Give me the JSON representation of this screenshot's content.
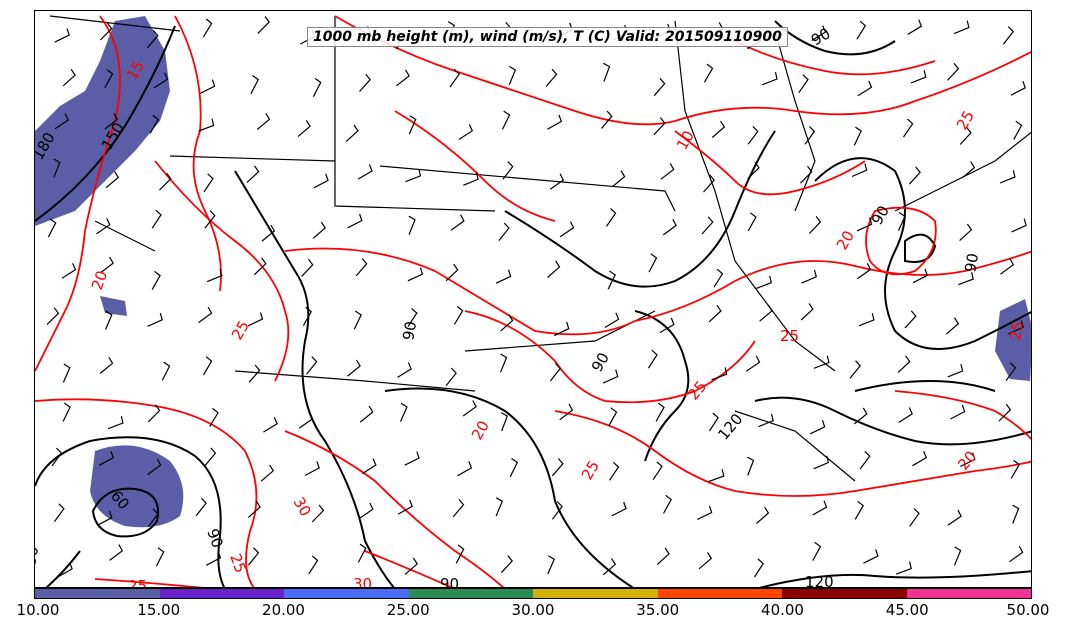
{
  "map": {
    "title": "1000 mb height (m), wind (m/s), T (C) Valid: 201509110900",
    "contour_labels_height": [
      "180",
      "150",
      "90",
      "90",
      "90",
      "60",
      "90",
      "90",
      "120",
      "120",
      "90",
      "90",
      "90"
    ],
    "contour_labels_temp": [
      "20",
      "10",
      "20",
      "25",
      "25",
      "25",
      "25",
      "25",
      "30",
      "20",
      "25",
      "25",
      "30",
      "20",
      "25",
      "15"
    ]
  },
  "colorbar": {
    "colors": [
      "#5b5ea6",
      "#6a22c9",
      "#4a6cf7",
      "#2e8b57",
      "#d4b106",
      "#ff4500",
      "#8b0000",
      "#ee3394"
    ],
    "ticks": [
      "10.00",
      "15.00",
      "20.00",
      "25.00",
      "30.00",
      "35.00",
      "40.00",
      "45.00",
      "50.00"
    ]
  },
  "colors": {
    "height_contour": "#000000",
    "temp_contour": "#ff0000",
    "shading": "#5b5ea6"
  }
}
